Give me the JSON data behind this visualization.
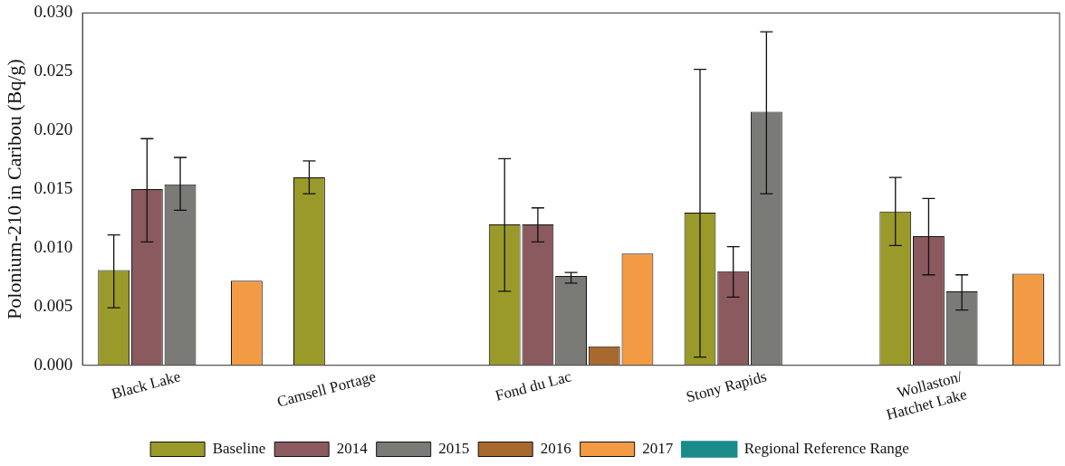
{
  "chart_data": {
    "type": "bar",
    "ylabel": "Polonium-210 in Caribou (Bq/g)",
    "categories": [
      "Black Lake",
      "Camsell Portage",
      "Fond du Lac",
      "Stony Rapids",
      "Wollaston/\nHatchet Lake"
    ],
    "series": [
      {
        "name": "Baseline",
        "color": "#9a9a2a",
        "values": [
          0.0081,
          0.016,
          0.012,
          0.013,
          0.0131
        ],
        "errors": [
          [
            0.0049,
            0.0111
          ],
          [
            0.0146,
            0.0174
          ],
          [
            0.0063,
            0.0176
          ],
          [
            0.0007,
            0.0252
          ],
          [
            0.0102,
            0.016
          ]
        ]
      },
      {
        "name": "2014",
        "color": "#8a5a5e",
        "values": [
          0.015,
          null,
          0.012,
          0.008,
          0.011
        ],
        "errors": [
          [
            0.0105,
            0.0193
          ],
          null,
          [
            0.0105,
            0.0134
          ],
          [
            0.0058,
            0.0101
          ],
          [
            0.0077,
            0.0142
          ]
        ]
      },
      {
        "name": "2015",
        "color": "#7a7a76",
        "values": [
          0.0154,
          null,
          0.0076,
          0.0216,
          0.0063
        ],
        "errors": [
          [
            0.0132,
            0.0177
          ],
          null,
          [
            0.007,
            0.0079
          ],
          [
            0.0146,
            0.0284
          ],
          [
            0.0047,
            0.0077
          ]
        ]
      },
      {
        "name": "2016",
        "color": "#a8692e",
        "values": [
          null,
          null,
          0.0016,
          null,
          null
        ]
      },
      {
        "name": "2017",
        "color": "#f39a45",
        "values": [
          0.0072,
          null,
          0.0095,
          null,
          0.0078
        ]
      },
      {
        "name": "Regional Reference Range",
        "type": "line",
        "color": "#1a8a8a",
        "values": [
          null,
          null,
          null,
          null,
          null
        ]
      }
    ],
    "ylim": [
      0,
      0.03
    ],
    "yticks": [
      {
        "value": 0,
        "label": "0.000"
      },
      0.005,
      {
        "value": 0.01,
        "label": "0.010"
      },
      0.015,
      {
        "value": 0.02,
        "label": "0.020"
      },
      0.025,
      {
        "value": 0.03,
        "label": "0.030"
      }
    ],
    "grid": false,
    "legend": "bottom"
  }
}
